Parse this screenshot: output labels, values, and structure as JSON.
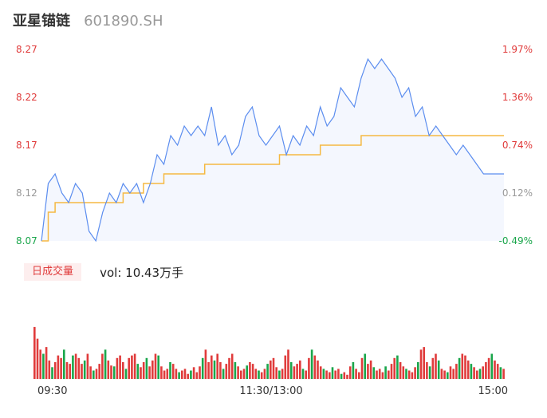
{
  "header": {
    "name": "亚星锚链",
    "code": "601890.SH"
  },
  "colors": {
    "up": "#e03b3b",
    "down": "#1aa64b",
    "flat": "#999999",
    "price_line": "#5b8def",
    "avg_line": "#f5b942",
    "price_fill": "#f4f7fe"
  },
  "volume_panel": {
    "badge": "日成交量",
    "text": "vol: 10.43万手"
  },
  "chart_data": [
    {
      "type": "line",
      "title": "",
      "prev_close": 8.11,
      "y_ticks": [
        "8.27",
        "8.22",
        "8.17",
        "8.12",
        "8.07"
      ],
      "y_tick_values": [
        8.27,
        8.22,
        8.17,
        8.12,
        8.07
      ],
      "pct_ticks": [
        "1.97%",
        "1.36%",
        "0.74%",
        "0.12%",
        "-0.49%"
      ],
      "ylim": [
        8.07,
        8.27
      ],
      "x_ticks": [
        "09:30",
        "11:30/13:00",
        "15:00"
      ],
      "grid": false,
      "series": [
        {
          "role": "price",
          "values": [
            8.07,
            8.13,
            8.14,
            8.12,
            8.11,
            8.13,
            8.12,
            8.08,
            8.07,
            8.1,
            8.12,
            8.11,
            8.13,
            8.12,
            8.13,
            8.11,
            8.13,
            8.16,
            8.15,
            8.18,
            8.17,
            8.19,
            8.18,
            8.19,
            8.18,
            8.21,
            8.17,
            8.18,
            8.16,
            8.17,
            8.2,
            8.21,
            8.18,
            8.17,
            8.18,
            8.19,
            8.16,
            8.18,
            8.17,
            8.19,
            8.18,
            8.21,
            8.19,
            8.2,
            8.23,
            8.22,
            8.21,
            8.24,
            8.26,
            8.25,
            8.26,
            8.25,
            8.24,
            8.22,
            8.23,
            8.2,
            8.21,
            8.18,
            8.19,
            8.18,
            8.17,
            8.16,
            8.17,
            8.16,
            8.15,
            8.14,
            8.14,
            8.14,
            8.14
          ]
        },
        {
          "role": "average",
          "values": [
            8.07,
            8.1,
            8.11,
            8.11,
            8.11,
            8.11,
            8.11,
            8.11,
            8.11,
            8.11,
            8.11,
            8.11,
            8.12,
            8.12,
            8.12,
            8.13,
            8.13,
            8.13,
            8.14,
            8.14,
            8.14,
            8.14,
            8.14,
            8.14,
            8.15,
            8.15,
            8.15,
            8.15,
            8.15,
            8.15,
            8.15,
            8.15,
            8.15,
            8.15,
            8.15,
            8.16,
            8.16,
            8.16,
            8.16,
            8.16,
            8.16,
            8.17,
            8.17,
            8.17,
            8.17,
            8.17,
            8.17,
            8.18,
            8.18,
            8.18,
            8.18,
            8.18,
            8.18,
            8.18,
            8.18,
            8.18,
            8.18,
            8.18,
            8.18,
            8.18,
            8.18,
            8.18,
            8.18,
            8.18,
            8.18,
            8.18,
            8.18,
            8.18,
            8.18
          ]
        }
      ]
    },
    {
      "type": "bar",
      "title": "",
      "ylim": [
        0,
        100
      ],
      "values": [
        62,
        48,
        35,
        30,
        38,
        22,
        14,
        20,
        28,
        25,
        35,
        20,
        18,
        28,
        30,
        25,
        18,
        22,
        30,
        15,
        10,
        12,
        18,
        30,
        35,
        22,
        16,
        15,
        25,
        28,
        20,
        12,
        25,
        28,
        30,
        18,
        14,
        20,
        25,
        15,
        22,
        30,
        28,
        15,
        10,
        12,
        20,
        18,
        12,
        8,
        10,
        12,
        6,
        10,
        14,
        8,
        15,
        25,
        35,
        20,
        28,
        22,
        30,
        20,
        12,
        18,
        25,
        30,
        20,
        15,
        10,
        12,
        16,
        20,
        18,
        12,
        10,
        8,
        12,
        18,
        22,
        25,
        14,
        10,
        12,
        28,
        35,
        20,
        15,
        18,
        22,
        12,
        10,
        25,
        35,
        28,
        22,
        15,
        12,
        10,
        8,
        14,
        10,
        12,
        6,
        8,
        5,
        15,
        20,
        12,
        8,
        25,
        30,
        18,
        22,
        14,
        10,
        12,
        8,
        15,
        10,
        18,
        25,
        28,
        20,
        15,
        12,
        10,
        8,
        14,
        20,
        35,
        38,
        20,
        15,
        25,
        30,
        22,
        12,
        10,
        8,
        15,
        12,
        18,
        25,
        30,
        28,
        22,
        18,
        14,
        10,
        12,
        15,
        20,
        25,
        30,
        22,
        18,
        14,
        12
      ],
      "up": [
        true,
        true,
        true,
        false,
        true,
        true,
        false,
        true,
        true,
        true,
        false,
        true,
        true,
        false,
        true,
        true,
        true,
        false,
        true,
        true,
        false,
        true,
        true,
        true,
        false,
        true,
        true,
        false,
        true,
        true,
        true,
        false,
        true,
        true,
        true,
        false,
        true,
        true,
        false,
        true,
        true,
        true,
        false,
        true,
        true,
        true,
        false,
        true,
        true,
        false,
        true,
        true,
        true,
        false,
        true,
        true,
        true,
        false,
        true,
        true,
        true,
        false,
        true,
        true,
        false,
        true,
        true,
        true,
        false,
        true,
        true,
        true,
        false,
        true,
        true,
        true,
        false,
        true,
        true,
        false,
        true,
        true,
        true,
        false,
        true,
        true,
        true,
        false,
        true,
        true,
        true,
        false,
        true,
        true,
        false,
        true,
        true,
        true,
        false,
        true,
        true,
        false,
        true,
        true,
        false,
        true,
        true,
        true,
        false,
        true,
        true,
        true,
        false,
        true,
        true,
        false,
        true,
        true,
        true,
        false,
        true,
        true,
        true,
        false,
        true,
        true,
        false,
        true,
        true,
        true,
        false,
        true,
        true,
        true,
        false,
        true,
        true,
        false,
        true,
        true,
        false,
        true,
        true,
        true,
        false,
        true,
        true,
        true,
        false,
        true,
        true,
        false,
        true,
        true,
        true,
        false,
        true,
        true,
        false,
        true
      ]
    }
  ]
}
